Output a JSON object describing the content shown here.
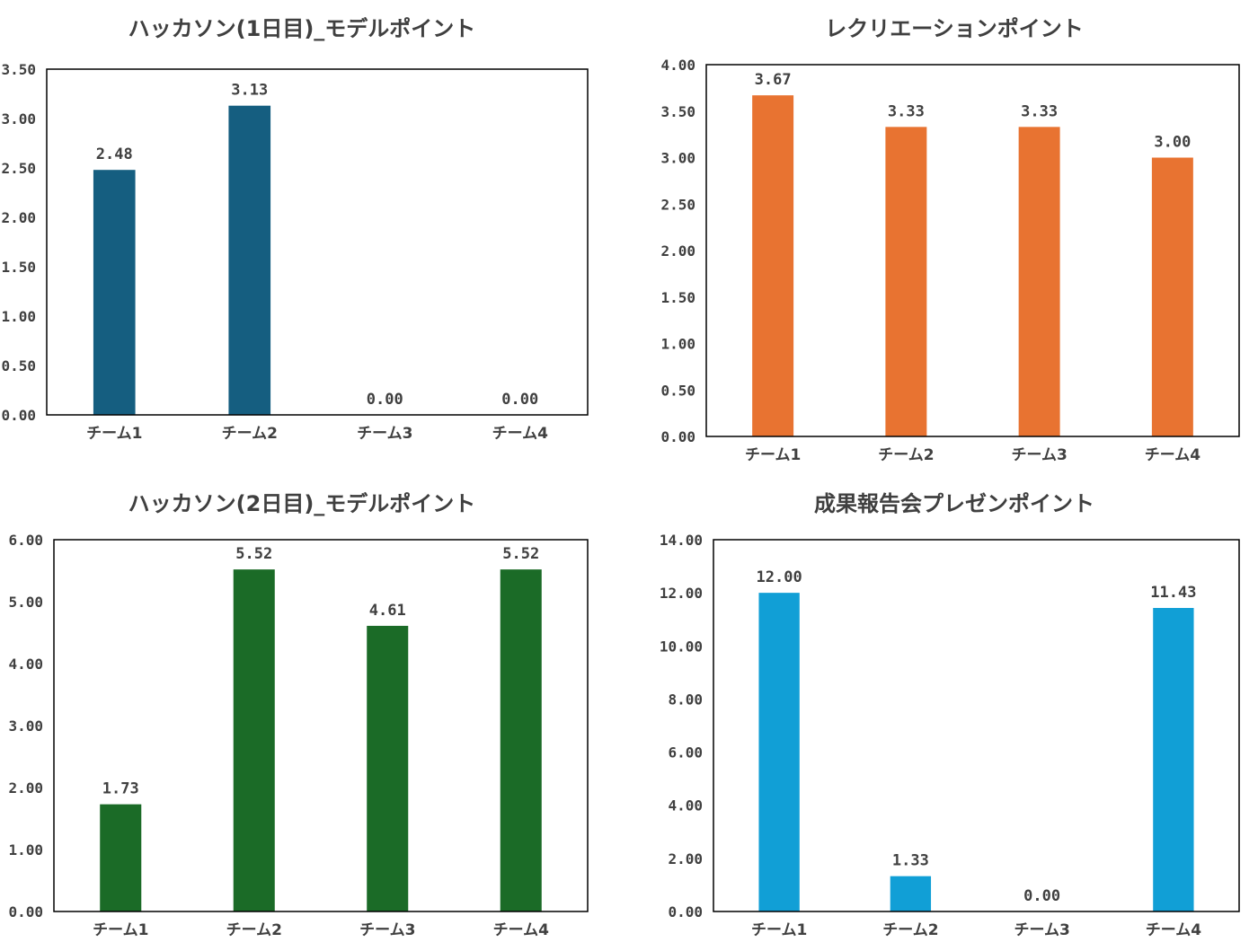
{
  "chart_data": [
    {
      "type": "bar",
      "title": "ハッカソン(1日目)_モデルポイント",
      "categories": [
        "チーム1",
        "チーム2",
        "チーム3",
        "チーム4"
      ],
      "values": [
        2.48,
        3.13,
        0.0,
        0.0
      ],
      "value_labels": [
        "2.48",
        "3.13",
        "0.00",
        "0.00"
      ],
      "yticks": [
        "0.00",
        "0.50",
        "1.00",
        "1.50",
        "2.00",
        "2.50",
        "3.00",
        "3.50"
      ],
      "ylim": [
        0,
        3.5
      ],
      "xlabel": "",
      "ylabel": "",
      "color": "#155e80",
      "grid": false,
      "legend": "none"
    },
    {
      "type": "bar",
      "title": "レクリエーションポイント",
      "categories": [
        "チーム1",
        "チーム2",
        "チーム3",
        "チーム4"
      ],
      "values": [
        3.67,
        3.33,
        3.33,
        3.0
      ],
      "value_labels": [
        "3.67",
        "3.33",
        "3.33",
        "3.00"
      ],
      "yticks": [
        "0.00",
        "0.50",
        "1.00",
        "1.50",
        "2.00",
        "2.50",
        "3.00",
        "3.50",
        "4.00"
      ],
      "ylim": [
        0,
        4
      ],
      "xlabel": "",
      "ylabel": "",
      "color": "#e87331",
      "grid": false,
      "legend": "none"
    },
    {
      "type": "bar",
      "title": "ハッカソン(2日目)_モデルポイント",
      "categories": [
        "チーム1",
        "チーム2",
        "チーム3",
        "チーム4"
      ],
      "values": [
        1.73,
        5.52,
        4.61,
        5.52
      ],
      "value_labels": [
        "1.73",
        "5.52",
        "4.61",
        "5.52"
      ],
      "yticks": [
        "0.00",
        "1.00",
        "2.00",
        "3.00",
        "4.00",
        "5.00",
        "6.00"
      ],
      "ylim": [
        0,
        6
      ],
      "xlabel": "",
      "ylabel": "",
      "color": "#1b6b27",
      "grid": false,
      "legend": "none"
    },
    {
      "type": "bar",
      "title": "成果報告会プレゼンポイント",
      "categories": [
        "チーム1",
        "チーム2",
        "チーム3",
        "チーム4"
      ],
      "values": [
        12.0,
        1.33,
        0.0,
        11.43
      ],
      "value_labels": [
        "12.00",
        "1.33",
        "0.00",
        "11.43"
      ],
      "yticks": [
        "0.00",
        "2.00",
        "4.00",
        "6.00",
        "8.00",
        "10.00",
        "12.00",
        "14.00"
      ],
      "ylim": [
        0,
        14
      ],
      "xlabel": "",
      "ylabel": "",
      "color": "#119fd6",
      "grid": false,
      "legend": "none"
    }
  ]
}
